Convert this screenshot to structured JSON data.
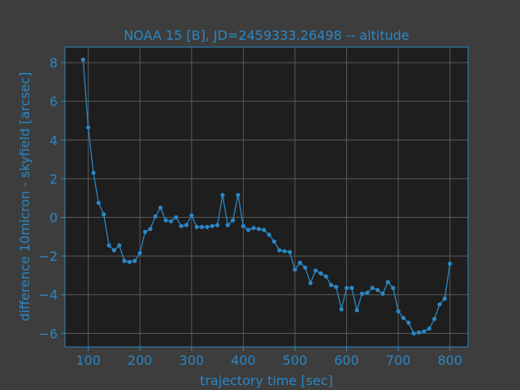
{
  "colors": {
    "figure_bg": "#3d3d3d",
    "axes_bg": "#1e1e1e",
    "accent": "#2a87c5",
    "grid": "#5a5a5a",
    "series": "#2a87c5"
  },
  "chart_data": {
    "type": "line",
    "title": "NOAA 15 [B], JD=2459333.26498 -- altitude",
    "xlabel": "trajectory time [sec]",
    "ylabel": "difference 10micron - skyfield [arcsec]",
    "xlim": [
      55,
      835
    ],
    "ylim": [
      -6.7,
      8.8
    ],
    "xticks": [
      100,
      200,
      300,
      400,
      500,
      600,
      700,
      800
    ],
    "yticks": [
      -6,
      -4,
      -2,
      0,
      2,
      4,
      6,
      8
    ],
    "grid": true,
    "markers": true,
    "series": [
      {
        "x": [
          90,
          100,
          110,
          120,
          130,
          140,
          150,
          160,
          170,
          180,
          190,
          200,
          210,
          220,
          230,
          240,
          250,
          260,
          270,
          280,
          290,
          300,
          310,
          320,
          330,
          340,
          350,
          360,
          370,
          380,
          390,
          400,
          410,
          420,
          430,
          440,
          450,
          460,
          470,
          480,
          490,
          500,
          510,
          520,
          530,
          540,
          550,
          560,
          570,
          580,
          590,
          600,
          610,
          620,
          630,
          640,
          650,
          660,
          670,
          680,
          690,
          700,
          710,
          720,
          730,
          740,
          750,
          760,
          770,
          780,
          790,
          800
        ],
        "y": [
          8.15,
          4.65,
          2.3,
          0.75,
          0.15,
          -1.45,
          -1.7,
          -1.45,
          -2.25,
          -2.3,
          -2.25,
          -1.85,
          -0.75,
          -0.6,
          0.05,
          0.5,
          -0.15,
          -0.2,
          0.0,
          -0.45,
          -0.4,
          0.1,
          -0.5,
          -0.5,
          -0.5,
          -0.45,
          -0.4,
          1.15,
          -0.4,
          -0.15,
          1.15,
          -0.45,
          -0.65,
          -0.55,
          -0.6,
          -0.65,
          -0.9,
          -1.25,
          -1.7,
          -1.75,
          -1.8,
          -2.7,
          -2.35,
          -2.6,
          -3.4,
          -2.75,
          -2.9,
          -3.05,
          -3.5,
          -3.6,
          -4.75,
          -3.65,
          -3.65,
          -4.8,
          -3.95,
          -3.9,
          -3.65,
          -3.75,
          -3.95,
          -3.35,
          -3.65,
          -4.85,
          -5.2,
          -5.45,
          -6.0,
          -5.95,
          -5.9,
          -5.75,
          -5.25,
          -4.5,
          -4.2,
          -2.4
        ]
      }
    ]
  }
}
